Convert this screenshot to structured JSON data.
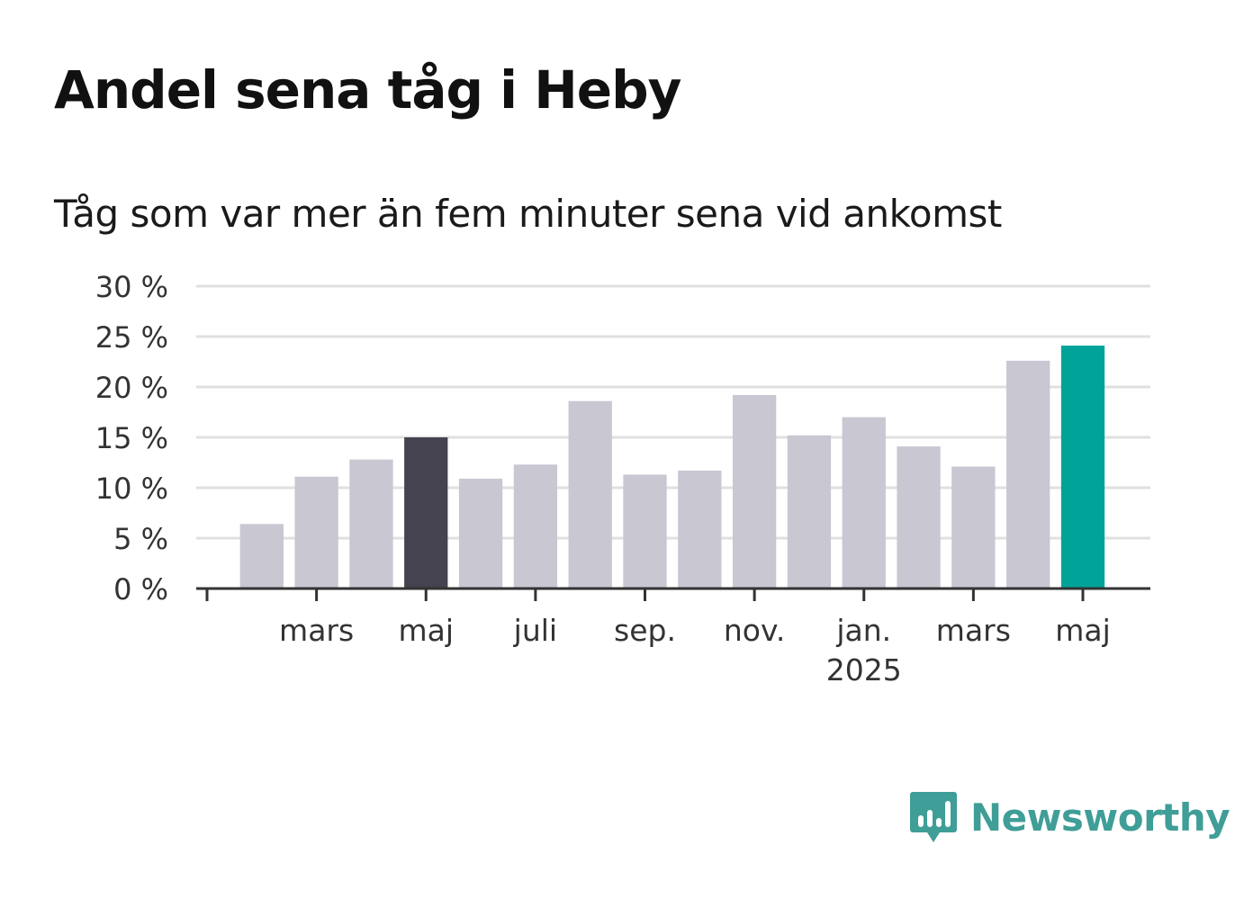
{
  "title": "Andel sena tåg i Heby",
  "subtitle": "Tåg som var mer än fem minuter sena vid ankomst",
  "brand": {
    "name": "Newsworthy",
    "color": "#3f9e97",
    "icon": "chart-speech-bubble-icon"
  },
  "colors": {
    "bar": "#c8c7d2",
    "highlight_dark": "#45434f",
    "highlight_accent": "#00a398",
    "grid": "#e0e0e0",
    "axis": "#333333"
  },
  "chart_data": {
    "type": "bar",
    "ylim": [
      0,
      30
    ],
    "yticks": [
      0,
      5,
      10,
      15,
      20,
      25,
      30
    ],
    "ytick_labels": [
      "0 %",
      "5 %",
      "10 %",
      "15 %",
      "20 %",
      "25 %",
      "30 %"
    ],
    "grid": true,
    "categories": [
      "2024-01",
      "2024-02",
      "2024-03",
      "2024-04",
      "2024-05",
      "2024-06",
      "2024-07",
      "2024-08",
      "2024-09",
      "2024-10",
      "2024-11",
      "2024-12",
      "2025-01",
      "2025-02",
      "2025-03",
      "2025-04",
      "2025-05"
    ],
    "values": [
      null,
      6.4,
      11.1,
      12.8,
      15.0,
      10.9,
      12.3,
      18.6,
      11.3,
      11.7,
      19.2,
      15.2,
      17.0,
      14.1,
      12.1,
      22.6,
      24.1
    ],
    "highlight": {
      "2024-05": "dark",
      "2025-05": "accent"
    },
    "xtick_labels": [
      {
        "category": "2024-01",
        "label": "",
        "label2": ""
      },
      {
        "category": "2024-03",
        "label": "mars",
        "label2": ""
      },
      {
        "category": "2024-05",
        "label": "maj",
        "label2": ""
      },
      {
        "category": "2024-07",
        "label": "juli",
        "label2": ""
      },
      {
        "category": "2024-09",
        "label": "sep.",
        "label2": ""
      },
      {
        "category": "2024-11",
        "label": "nov.",
        "label2": ""
      },
      {
        "category": "2025-01",
        "label": "jan.",
        "label2": "2025"
      },
      {
        "category": "2025-03",
        "label": "mars",
        "label2": ""
      },
      {
        "category": "2025-05",
        "label": "maj",
        "label2": ""
      }
    ]
  }
}
